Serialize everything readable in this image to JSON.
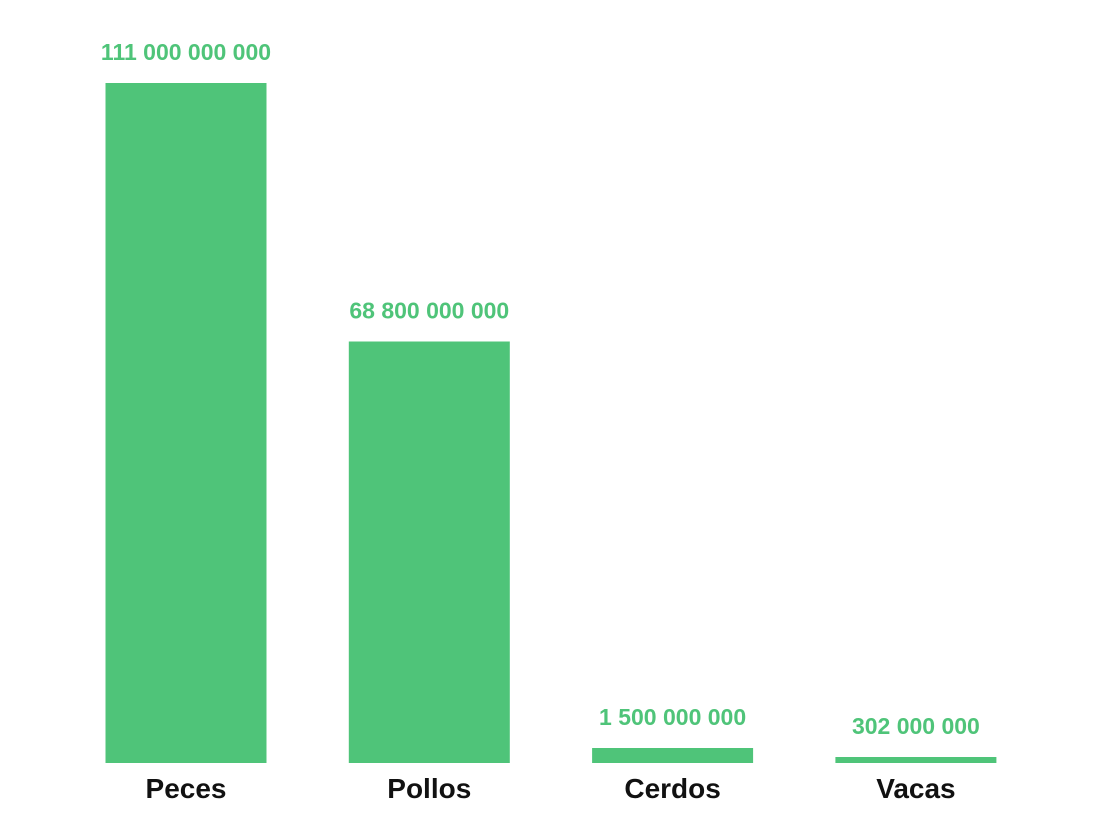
{
  "chart_data": {
    "type": "bar",
    "title": "",
    "xlabel": "",
    "ylabel": "",
    "categories": [
      "Peces",
      "Pollos",
      "Cerdos",
      "Vacas"
    ],
    "values": [
      111000000000,
      68800000000,
      1500000000,
      302000000
    ],
    "value_labels": [
      "111 000 000 000",
      "68 800 000 000",
      "1 500 000 000",
      "302 000 000"
    ],
    "ylim": [
      0,
      111000000000
    ],
    "grid": false,
    "legend": "none",
    "bar_color": "#4fc479",
    "label_color": "#4fc479",
    "category_color": "#111111"
  }
}
